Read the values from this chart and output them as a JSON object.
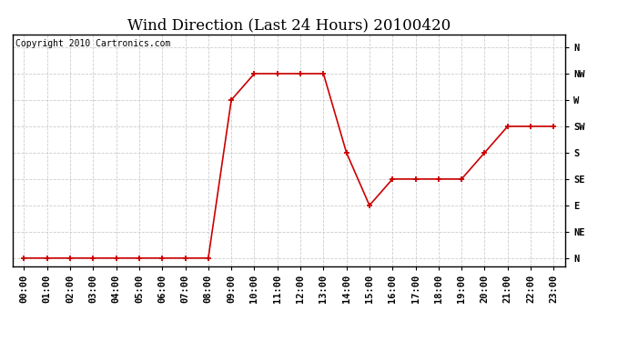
{
  "title": "Wind Direction (Last 24 Hours) 20100420",
  "copyright": "Copyright 2010 Cartronics.com",
  "background_color": "#ffffff",
  "plot_bg_color": "#ffffff",
  "line_color": "#cc0000",
  "marker": "+",
  "marker_color": "#cc0000",
  "x_labels": [
    "00:00",
    "01:00",
    "02:00",
    "03:00",
    "04:00",
    "05:00",
    "06:00",
    "07:00",
    "08:00",
    "09:00",
    "10:00",
    "11:00",
    "12:00",
    "13:00",
    "14:00",
    "15:00",
    "16:00",
    "17:00",
    "18:00",
    "19:00",
    "20:00",
    "21:00",
    "22:00",
    "23:00"
  ],
  "y_ticks": [
    0,
    1,
    2,
    3,
    4,
    5,
    6,
    7,
    8
  ],
  "y_labels": [
    "N",
    "NE",
    "E",
    "SE",
    "S",
    "SW",
    "W",
    "NW",
    "N"
  ],
  "data": [
    0,
    0,
    0,
    0,
    0,
    0,
    0,
    0,
    0,
    6,
    7,
    7,
    7,
    7,
    4,
    2,
    3,
    3,
    3,
    3,
    4,
    5,
    5,
    5
  ],
  "grid_color": "#cccccc",
  "title_fontsize": 12,
  "tick_fontsize": 7.5,
  "copyright_fontsize": 7
}
